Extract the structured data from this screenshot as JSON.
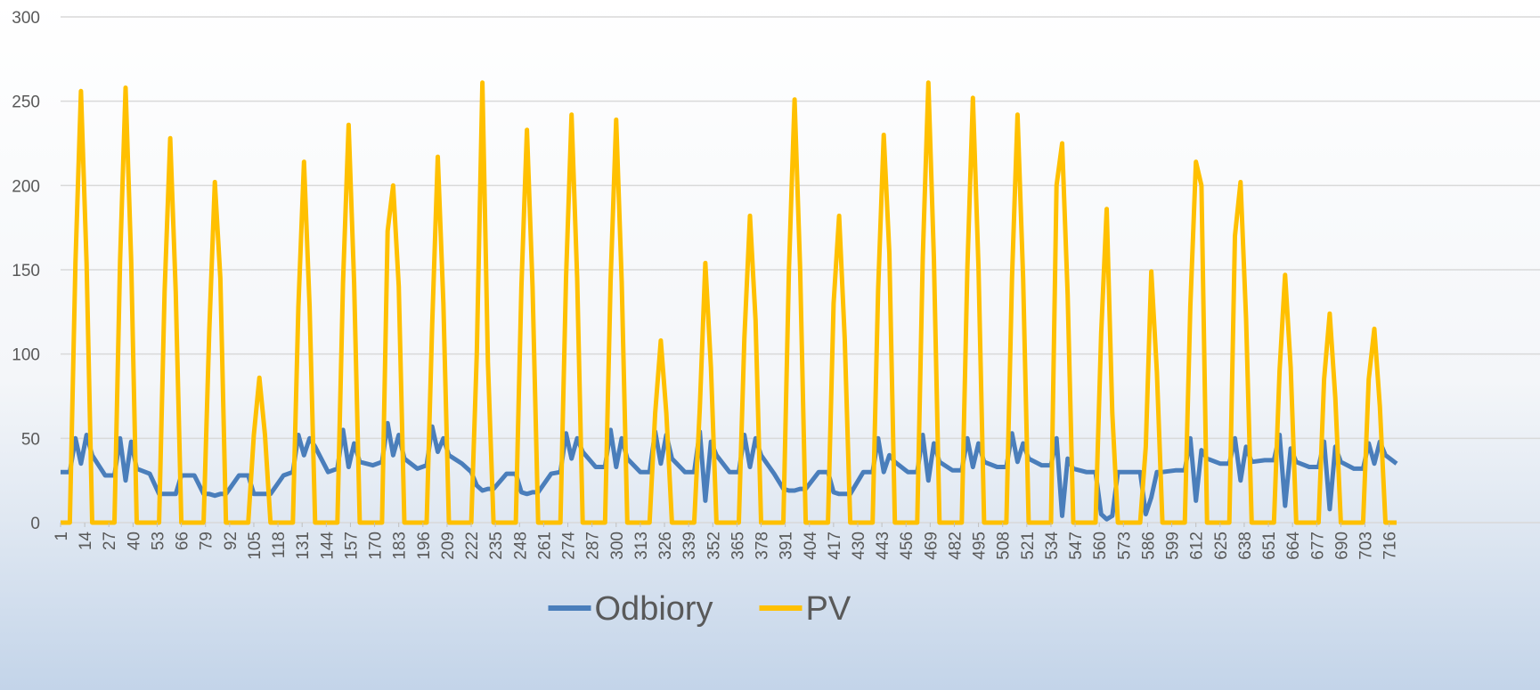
{
  "chart_data": {
    "type": "line",
    "x": [
      1,
      6,
      9,
      12,
      15,
      18,
      25,
      30,
      33,
      36,
      39,
      42,
      49,
      54,
      57,
      60,
      63,
      66,
      73,
      78,
      81,
      84,
      87,
      90,
      97,
      102,
      105,
      108,
      111,
      114,
      121,
      126,
      129,
      132,
      135,
      138,
      145,
      150,
      153,
      156,
      159,
      162,
      169,
      174,
      177,
      180,
      183,
      186,
      193,
      198,
      201,
      204,
      207,
      210,
      217,
      222,
      225,
      228,
      231,
      234,
      241,
      246,
      249,
      252,
      255,
      258,
      265,
      270,
      273,
      276,
      279,
      282,
      289,
      294,
      297,
      300,
      303,
      306,
      313,
      318,
      321,
      324,
      327,
      330,
      337,
      342,
      345,
      348,
      351,
      354,
      361,
      366,
      369,
      372,
      375,
      378,
      385,
      390,
      393,
      396,
      399,
      402,
      409,
      414,
      417,
      420,
      423,
      426,
      433,
      438,
      441,
      444,
      447,
      450,
      457,
      462,
      465,
      468,
      471,
      474,
      481,
      486,
      489,
      492,
      495,
      498,
      505,
      510,
      513,
      516,
      519,
      522,
      529,
      534,
      537,
      540,
      543,
      546,
      553,
      558,
      561,
      564,
      567,
      570,
      577,
      582,
      585,
      588,
      591,
      594,
      601,
      606,
      609,
      612,
      615,
      618,
      625,
      630,
      633,
      636,
      639,
      642,
      649,
      654,
      657,
      660,
      663,
      666,
      673,
      678,
      681,
      684,
      687,
      690,
      697,
      702,
      705,
      708,
      711,
      714,
      720
    ],
    "series": [
      {
        "name": "Odbiory",
        "color": "#4a7ebb",
        "values": [
          30,
          30,
          50,
          35,
          52,
          40,
          28,
          28,
          50,
          25,
          48,
          32,
          29,
          17,
          17,
          17,
          17,
          28,
          28,
          17,
          17,
          16,
          17,
          17,
          28,
          28,
          17,
          17,
          17,
          17,
          28,
          30,
          52,
          40,
          50,
          45,
          30,
          32,
          55,
          33,
          47,
          36,
          34,
          36,
          59,
          40,
          52,
          38,
          32,
          34,
          57,
          42,
          50,
          40,
          35,
          30,
          22,
          19,
          20,
          20,
          29,
          29,
          18,
          17,
          18,
          18,
          29,
          30,
          53,
          38,
          50,
          42,
          33,
          33,
          55,
          33,
          50,
          38,
          30,
          30,
          54,
          35,
          52,
          38,
          30,
          30,
          54,
          13,
          48,
          40,
          30,
          30,
          52,
          33,
          50,
          40,
          29,
          20,
          19,
          19,
          20,
          20,
          30,
          30,
          18,
          17,
          17,
          17,
          30,
          30,
          50,
          30,
          40,
          36,
          30,
          30,
          52,
          25,
          47,
          36,
          31,
          31,
          50,
          33,
          47,
          36,
          33,
          33,
          53,
          36,
          47,
          38,
          34,
          34,
          50,
          4,
          38,
          32,
          30,
          30,
          5,
          2,
          4,
          30,
          30,
          30,
          5,
          15,
          30,
          30,
          31,
          31,
          50,
          13,
          43,
          38,
          35,
          35,
          50,
          25,
          45,
          36,
          37,
          37,
          52,
          10,
          44,
          36,
          33,
          33,
          48,
          8,
          45,
          36,
          32,
          32,
          47,
          35,
          48,
          40,
          35
        ]
      },
      {
        "name": "PV",
        "color": "#ffc000",
        "values": [
          0,
          0,
          154,
          256,
          154,
          0,
          0,
          0,
          155,
          258,
          155,
          0,
          0,
          0,
          137,
          228,
          137,
          0,
          0,
          0,
          113,
          202,
          145,
          0,
          0,
          0,
          52,
          86,
          52,
          0,
          0,
          0,
          128,
          214,
          128,
          0,
          0,
          0,
          142,
          236,
          142,
          0,
          0,
          0,
          173,
          200,
          140,
          0,
          0,
          0,
          117,
          217,
          130,
          0,
          0,
          0,
          100,
          261,
          95,
          0,
          0,
          0,
          140,
          233,
          140,
          0,
          0,
          0,
          145,
          242,
          145,
          0,
          0,
          0,
          143,
          239,
          143,
          0,
          0,
          0,
          65,
          108,
          65,
          0,
          0,
          0,
          68,
          154,
          92,
          0,
          0,
          0,
          109,
          182,
          120,
          0,
          0,
          0,
          151,
          251,
          151,
          0,
          0,
          0,
          130,
          182,
          109,
          0,
          0,
          0,
          138,
          230,
          160,
          0,
          0,
          0,
          157,
          261,
          157,
          0,
          0,
          0,
          151,
          252,
          151,
          0,
          0,
          0,
          145,
          242,
          145,
          0,
          0,
          0,
          200,
          225,
          135,
          0,
          0,
          0,
          112,
          186,
          65,
          0,
          0,
          0,
          45,
          149,
          89,
          0,
          0,
          0,
          128,
          214,
          200,
          0,
          0,
          0,
          170,
          202,
          121,
          0,
          0,
          0,
          90,
          147,
          92,
          0,
          0,
          0,
          85,
          124,
          74,
          0,
          0,
          0,
          85,
          115,
          69,
          0,
          0
        ]
      }
    ],
    "xlim": [
      1,
      720
    ],
    "xticks": [
      1,
      14,
      27,
      40,
      53,
      66,
      79,
      92,
      105,
      118,
      131,
      144,
      157,
      170,
      183,
      196,
      209,
      222,
      235,
      248,
      261,
      274,
      287,
      300,
      313,
      326,
      339,
      352,
      365,
      378,
      391,
      404,
      417,
      430,
      443,
      456,
      469,
      482,
      495,
      508,
      521,
      534,
      547,
      560,
      573,
      586,
      599,
      612,
      625,
      638,
      651,
      664,
      677,
      690,
      703,
      716
    ],
    "ylim": [
      0,
      300
    ],
    "yticks": [
      0,
      50,
      100,
      150,
      200,
      250,
      300
    ],
    "grid": true,
    "legend": "bottom"
  }
}
